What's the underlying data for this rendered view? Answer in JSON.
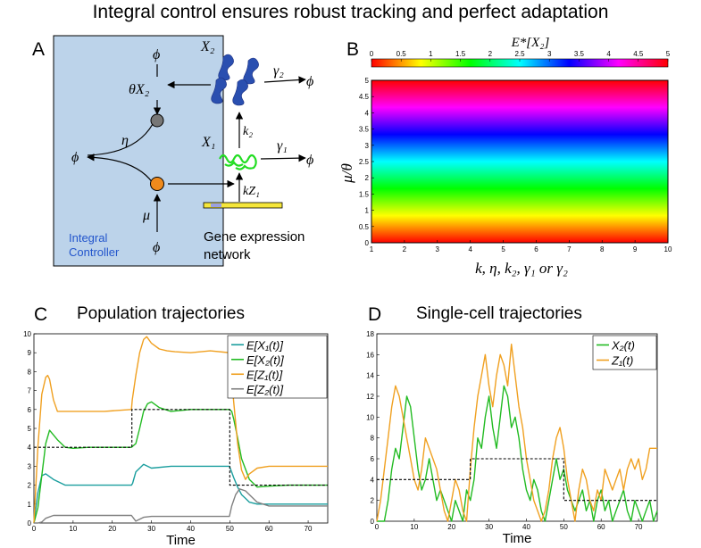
{
  "figure": {
    "title": "Integral control ensures robust tracking and perfect adaptation",
    "panels": {
      "a": {
        "letter": "A",
        "controller_label_line1": "Integral",
        "controller_label_line2": "Controller",
        "network_label_line1": "Gene expression",
        "network_label_line2": "network",
        "symbols": {
          "x2": "X₂",
          "x1": "X₁",
          "phi": "ϕ",
          "theta_x2": "θX₂",
          "eta": "η",
          "mu": "μ",
          "k2": "k₂",
          "kz1": "kZ₁",
          "gamma1": "γ₁",
          "gamma2": "γ₂"
        },
        "colors": {
          "controller_bg": "#bcd3ea",
          "gray_node": "#777777",
          "orange_node": "#f08a1c",
          "label_blue": "#2255cc",
          "protein": "#2a4fb0",
          "mrna": "#22dd22",
          "gene": "#f5e63a"
        }
      },
      "b": {
        "letter": "B",
        "colorbar_title": "E*[X₂]",
        "colorbar_ticks": [
          "0",
          "0.5",
          "1",
          "1.5",
          "2",
          "2.5",
          "3",
          "3.5",
          "4",
          "4.5",
          "5"
        ],
        "ylabel": "μ/θ",
        "xlabel": "k, η, k₂, γ₁ or γ₂"
      },
      "c": {
        "letter": "C",
        "subtitle": "Population trajectories"
      },
      "d": {
        "letter": "D",
        "subtitle": "Single-cell trajectories"
      }
    }
  },
  "chart_data": [
    {
      "id": "heatmap-b",
      "type": "heatmap",
      "title": "E*[X₂]",
      "xlabel": "k, η, k₂, γ₁ or γ₂",
      "ylabel": "μ/θ",
      "xlim": [
        1,
        10
      ],
      "ylim": [
        0,
        5
      ],
      "x_ticks": [
        1,
        2,
        3,
        4,
        5,
        6,
        7,
        8,
        9,
        10
      ],
      "y_ticks": [
        0,
        0.5,
        1,
        1.5,
        2,
        2.5,
        3,
        3.5,
        4,
        4.5,
        5
      ],
      "value_rule": "E*[X₂] = μ/θ (independent of x)",
      "color_range": [
        0,
        5
      ],
      "colormap": "hsv"
    },
    {
      "id": "line-c",
      "type": "line",
      "title": "Population trajectories",
      "xlabel": "Time",
      "ylabel": "",
      "xlim": [
        0,
        75
      ],
      "ylim": [
        0,
        10
      ],
      "x_ticks": [
        0,
        10,
        20,
        30,
        40,
        50,
        60,
        70
      ],
      "y_ticks": [
        0,
        1,
        2,
        3,
        4,
        5,
        6,
        7,
        8,
        9,
        10
      ],
      "legend_position": "top-right",
      "setpoint": {
        "x": [
          0,
          25,
          25,
          50,
          50,
          75
        ],
        "y": [
          4,
          4,
          6,
          6,
          2,
          2
        ],
        "style": "dashed"
      },
      "series": [
        {
          "name": "E[X₁(t)]",
          "color": "#1a9e9e",
          "x": [
            0,
            1,
            2,
            3,
            5,
            8,
            12,
            18,
            24.9,
            25.2,
            26,
            28,
            30,
            35,
            40,
            45,
            49.9,
            50.3,
            51,
            52,
            53,
            54,
            55,
            57,
            60,
            65,
            70,
            75
          ],
          "y": [
            0,
            1.6,
            2.5,
            2.6,
            2.3,
            2.0,
            2.0,
            2.0,
            2.0,
            2.1,
            2.7,
            3.1,
            2.9,
            3.0,
            3.0,
            3.0,
            3.0,
            2.8,
            2.4,
            1.9,
            1.5,
            1.3,
            1.1,
            1.0,
            1.0,
            1.0,
            1.0,
            1.0
          ]
        },
        {
          "name": "E[X₂(t)]",
          "color": "#22bb22",
          "x": [
            0,
            1,
            2,
            3,
            4,
            6,
            8,
            10,
            14,
            20,
            24.9,
            26,
            27,
            28,
            29,
            30,
            32,
            35,
            40,
            45,
            49.9,
            50.5,
            51,
            52,
            53,
            55,
            57,
            60,
            65,
            70,
            75
          ],
          "y": [
            0,
            0.8,
            2.5,
            4.2,
            4.9,
            4.4,
            4.0,
            3.95,
            4.0,
            4.0,
            4.0,
            4.2,
            5.0,
            5.9,
            6.3,
            6.4,
            6.1,
            5.9,
            6.0,
            6.0,
            6.0,
            5.9,
            5.5,
            4.5,
            3.4,
            2.3,
            1.9,
            1.95,
            2.0,
            2.0,
            2.0
          ]
        },
        {
          "name": "E[Z₁(t)]",
          "color": "#f0a020",
          "x": [
            0,
            1,
            2,
            3,
            3.5,
            4,
            5,
            6,
            7,
            8,
            10,
            14,
            18,
            24.9,
            25.1,
            26,
            27,
            28,
            28.8,
            30,
            32,
            34,
            36,
            40,
            45,
            49.9,
            50.2,
            51,
            52,
            53,
            54,
            55,
            57,
            60,
            65,
            70,
            75
          ],
          "y": [
            0,
            4.0,
            6.8,
            7.7,
            7.8,
            7.6,
            6.5,
            5.9,
            5.9,
            5.9,
            5.9,
            5.9,
            5.9,
            6.0,
            6.5,
            7.8,
            9.0,
            9.7,
            9.85,
            9.5,
            9.2,
            9.1,
            9.05,
            9.0,
            9.1,
            9.0,
            8.3,
            6.4,
            4.2,
            2.8,
            2.3,
            2.6,
            2.9,
            3.0,
            3.0,
            3.0,
            3.0
          ]
        },
        {
          "name": "E[Z₂(t)]",
          "color": "#808080",
          "x": [
            0,
            1,
            2,
            3,
            5,
            8,
            12,
            20,
            24.9,
            26,
            28,
            30,
            35,
            40,
            45,
            49.9,
            50.5,
            51.5,
            52.5,
            54,
            57,
            60,
            65,
            70,
            75
          ],
          "y": [
            0,
            0.0,
            0.05,
            0.25,
            0.4,
            0.4,
            0.4,
            0.4,
            0.4,
            0.1,
            0.3,
            0.35,
            0.35,
            0.35,
            0.35,
            0.35,
            0.9,
            1.5,
            1.8,
            1.7,
            1.1,
            0.9,
            0.9,
            0.9,
            0.9
          ]
        }
      ]
    },
    {
      "id": "line-d",
      "type": "line",
      "title": "Single-cell trajectories",
      "xlabel": "Time",
      "ylabel": "",
      "xlim": [
        0,
        75
      ],
      "ylim": [
        0,
        18
      ],
      "x_ticks": [
        0,
        10,
        20,
        30,
        40,
        50,
        60,
        70
      ],
      "y_ticks": [
        0,
        2,
        4,
        6,
        8,
        10,
        12,
        14,
        16,
        18
      ],
      "legend_position": "top-right",
      "setpoint": {
        "x": [
          0,
          25,
          25,
          50,
          50,
          75
        ],
        "y": [
          4,
          4,
          6,
          6,
          2,
          2
        ],
        "style": "dashed"
      },
      "series": [
        {
          "name": "X₂(t)",
          "color": "#22bb22",
          "x": [
            0,
            2,
            3,
            4,
            5,
            6,
            7,
            8,
            9,
            10,
            11,
            12,
            13,
            14,
            15,
            16,
            17,
            18,
            19,
            20,
            21,
            22,
            23,
            24,
            25,
            26,
            27,
            28,
            29,
            30,
            31,
            32,
            33,
            34,
            35,
            36,
            37,
            38,
            39,
            40,
            41,
            42,
            43,
            44,
            45,
            46,
            47,
            48,
            49,
            50,
            51,
            52,
            53,
            54,
            55,
            56,
            57,
            58,
            59,
            60,
            61,
            62,
            63,
            64,
            65,
            66,
            67,
            68,
            69,
            70,
            71,
            72,
            73,
            74,
            75
          ],
          "y": [
            0,
            0,
            2,
            5,
            7,
            6,
            9,
            12,
            11,
            8,
            5,
            3,
            4,
            6,
            4,
            2,
            3,
            2,
            1,
            0,
            2,
            1,
            0,
            3,
            2,
            4,
            8,
            7,
            10,
            12,
            9,
            7,
            10,
            13,
            12,
            9,
            10,
            8,
            5,
            3,
            2,
            4,
            3,
            1,
            0,
            2,
            4,
            6,
            4,
            5,
            3,
            2,
            1,
            2,
            3,
            1,
            2,
            0,
            2,
            3,
            1,
            2,
            0,
            1,
            2,
            3,
            1,
            0,
            2,
            1,
            0,
            1,
            2,
            0,
            1
          ]
        },
        {
          "name": "Z₁(t)",
          "color": "#f0a020",
          "x": [
            0,
            1,
            2,
            3,
            4,
            5,
            6,
            7,
            8,
            9,
            10,
            11,
            12,
            13,
            14,
            15,
            16,
            17,
            18,
            19,
            20,
            21,
            22,
            23,
            24,
            25,
            26,
            27,
            28,
            29,
            30,
            31,
            32,
            33,
            34,
            35,
            36,
            37,
            38,
            39,
            40,
            41,
            42,
            43,
            44,
            45,
            46,
            47,
            48,
            49,
            50,
            51,
            52,
            53,
            54,
            55,
            56,
            57,
            58,
            59,
            60,
            61,
            62,
            63,
            64,
            65,
            66,
            67,
            68,
            69,
            70,
            71,
            72,
            73,
            74,
            75
          ],
          "y": [
            0,
            2,
            5,
            8,
            11,
            13,
            12,
            10,
            8,
            6,
            4,
            3,
            5,
            8,
            7,
            6,
            5,
            3,
            1,
            0,
            2,
            4,
            3,
            1,
            0,
            5,
            9,
            12,
            14,
            16,
            13,
            11,
            14,
            16,
            15,
            13,
            17,
            14,
            11,
            9,
            6,
            4,
            2,
            1,
            0,
            1,
            3,
            6,
            8,
            9,
            7,
            4,
            2,
            0,
            3,
            5,
            4,
            2,
            1,
            3,
            2,
            5,
            4,
            3,
            4,
            5,
            3,
            5,
            6,
            5,
            6,
            4,
            5,
            7,
            7,
            7
          ]
        }
      ]
    }
  ]
}
